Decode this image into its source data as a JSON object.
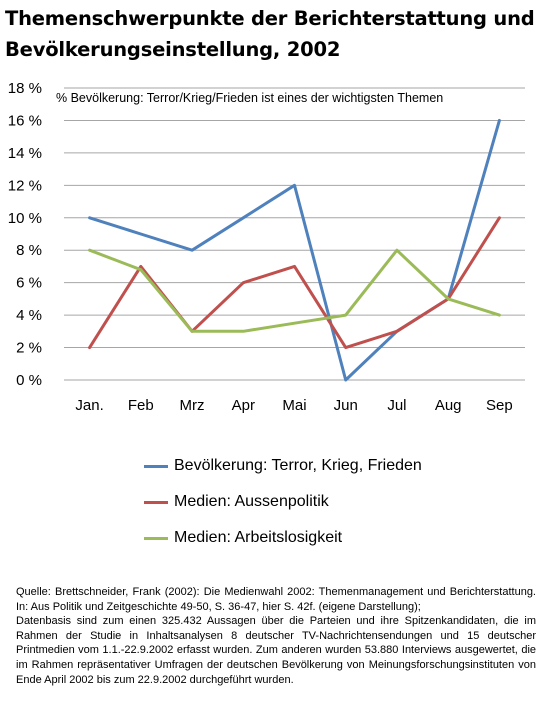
{
  "title": {
    "line1": "Themenschwerpunkte der Berichterstattung und",
    "line2": "Bevölkerungseinstellung, 2002"
  },
  "colors": {
    "bevoelkerung": "#4f81bd",
    "aussenpolitik": "#c0504d",
    "arbeitslosigkeit": "#9bbb59",
    "grid": "#a6a6a6"
  },
  "chart_data": {
    "type": "line",
    "annotation": "% Bevölkerung: Terror/Krieg/Frieden ist eines der wichtigsten Themen",
    "categories": [
      "Jan.",
      "Feb",
      "Mrz",
      "Apr",
      "Mai",
      "Jun",
      "Jul",
      "Aug",
      "Sep"
    ],
    "yticks": [
      "0 %",
      "2 %",
      "4 %",
      "6 %",
      "8 %",
      "10 %",
      "12 %",
      "14 %",
      "16 %",
      "18 %"
    ],
    "ylim": [
      0,
      18
    ],
    "ystep": 2,
    "grid": true,
    "legend_position": "bottom",
    "series": [
      {
        "name": "Bevölkerung: Terror, Krieg, Frieden",
        "key": "bevoelkerung",
        "values": [
          10,
          9,
          8,
          10,
          12,
          0,
          3,
          5,
          16
        ]
      },
      {
        "name": "Medien: Aussenpolitik",
        "key": "aussenpolitik",
        "values": [
          2,
          7,
          3,
          6,
          7,
          2,
          3,
          5,
          10
        ]
      },
      {
        "name": "Medien: Arbeitslosigkeit",
        "key": "arbeitslosigkeit",
        "values": [
          8,
          6.8,
          3,
          3,
          3.5,
          4,
          8,
          5,
          4
        ]
      }
    ]
  },
  "source": {
    "p1": "Quelle: Brettschneider, Frank (2002): Die Medienwahl 2002: Themenmanagement und Berichterstattung. In: Aus Politik und Zeitgeschichte 49-50, S. 36-47, hier S. 42f. (eigene Darstellung);",
    "p2": "Datenbasis sind zum einen 325.432 Aussagen über die Parteien und ihre Spitzenkandidaten, die im Rahmen der Studie in Inhaltsanalysen 8 deutscher TV-Nachrichtensendungen und 15 deutscher Printmedien vom 1.1.-22.9.2002 erfasst wurden. Zum anderen wurden 53.880 Interviews ausgewertet, die im Rahmen repräsentativer Umfragen der deutschen Bevölkerung von Meinungsforschungsinstituten von Ende April 2002 bis zum 22.9.2002 durchgeführt wurden."
  }
}
